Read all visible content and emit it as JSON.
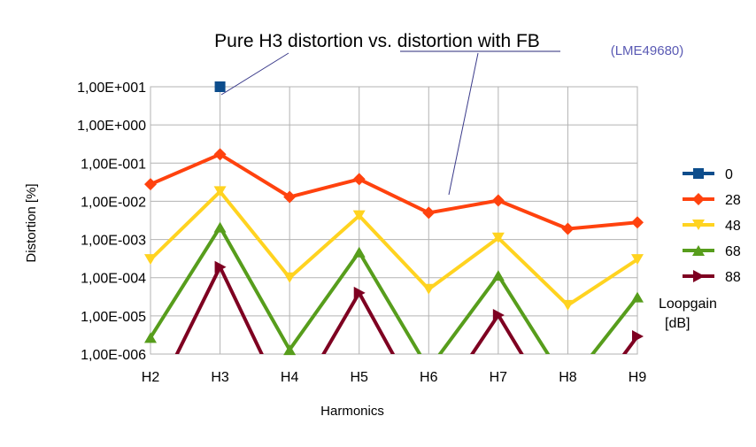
{
  "chart_data": {
    "type": "line",
    "title": "Pure H3 distortion vs. distortion with FB",
    "annotation": "(LME49680)",
    "annotation_color": "#5a5ab4",
    "xlabel": "Harmonics",
    "ylabel": "Distortion [%]",
    "y_scale": "log",
    "ylim": [
      1e-06,
      10
    ],
    "y_ticks": [
      10,
      1,
      0.1,
      0.01,
      0.001,
      0.0001,
      1e-05,
      1e-06
    ],
    "y_tick_labels": [
      "1,00E+001",
      "1,00E+000",
      "1,00E-001",
      "1,00E-002",
      "1,00E-003",
      "1,00E-004",
      "1,00E-005",
      "1,00E-006"
    ],
    "categories": [
      "H2",
      "H3",
      "H4",
      "H5",
      "H6",
      "H7",
      "H8",
      "H9"
    ],
    "grid": true,
    "legend_position": "right",
    "legend_title": [
      "Loopgain",
      "[dB]"
    ],
    "series": [
      {
        "name": "0",
        "color": "#0d4d8c",
        "marker": "square",
        "values": [
          null,
          10,
          null,
          null,
          null,
          null,
          null,
          null
        ]
      },
      {
        "name": "28",
        "color": "#ff420e",
        "marker": "diamond",
        "values": [
          0.028,
          0.17,
          0.013,
          0.038,
          0.005,
          0.0105,
          0.0019,
          0.0028
        ]
      },
      {
        "name": "48",
        "color": "#ffd320",
        "marker": "triangle-down",
        "values": [
          0.0003,
          0.018,
          0.0001,
          0.0042,
          5e-05,
          0.0011,
          1.9e-05,
          0.0003
        ]
      },
      {
        "name": "68",
        "color": "#579d1c",
        "marker": "triangle-up",
        "values": [
          2.7e-06,
          0.0021,
          1.3e-06,
          0.00047,
          4e-07,
          0.000115,
          1.5e-07,
          3.1e-05
        ]
      },
      {
        "name": "88",
        "color": "#7e0021",
        "marker": "triangle-right",
        "values": [
          4e-08,
          0.00019,
          3e-08,
          4e-05,
          2e-08,
          1.05e-05,
          1e-08,
          2.9e-06
        ]
      }
    ]
  }
}
